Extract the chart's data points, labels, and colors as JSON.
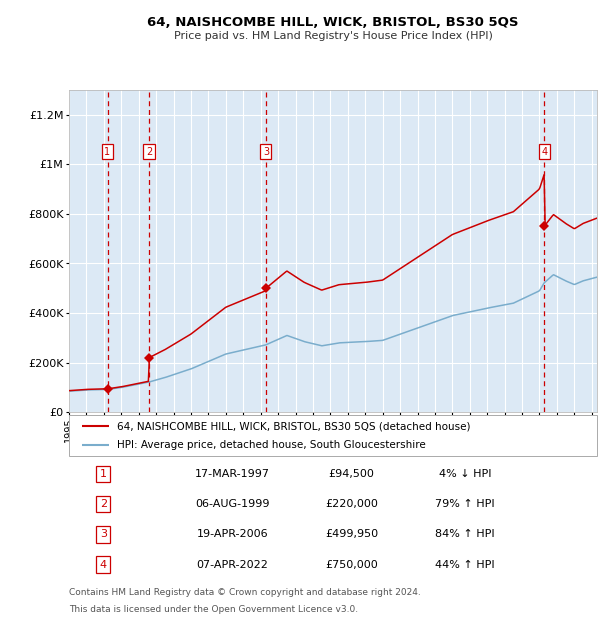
{
  "title": "64, NAISHCOMBE HILL, WICK, BRISTOL, BS30 5QS",
  "subtitle": "Price paid vs. HM Land Registry's House Price Index (HPI)",
  "legend_line1": "64, NAISHCOMBE HILL, WICK, BRISTOL, BS30 5QS (detached house)",
  "legend_line2": "HPI: Average price, detached house, South Gloucestershire",
  "footer1": "Contains HM Land Registry data © Crown copyright and database right 2024.",
  "footer2": "This data is licensed under the Open Government Licence v3.0.",
  "background_color": "#dce9f5",
  "plot_bg_color": "#dce9f5",
  "red_color": "#cc0000",
  "blue_color": "#7aadcc",
  "ylim": [
    0,
    1300000
  ],
  "yticks": [
    0,
    200000,
    400000,
    600000,
    800000,
    1000000,
    1200000
  ],
  "ytick_labels": [
    "£0",
    "£200K",
    "£400K",
    "£600K",
    "£800K",
    "£1M",
    "£1.2M"
  ],
  "sale_dates": [
    1997.21,
    1999.59,
    2006.3,
    2022.27
  ],
  "sale_prices": [
    94500,
    220000,
    499950,
    750000
  ],
  "sale_labels": [
    "1",
    "2",
    "3",
    "4"
  ],
  "vline_dates": [
    1997.21,
    1999.59,
    2006.3,
    2022.27
  ],
  "xmin": 1995,
  "xmax": 2025.3,
  "table_data": [
    [
      "1",
      "17-MAR-1997",
      "£94,500",
      "4% ↓ HPI"
    ],
    [
      "2",
      "06-AUG-1999",
      "£220,000",
      "79% ↑ HPI"
    ],
    [
      "3",
      "19-APR-2006",
      "£499,950",
      "84% ↑ HPI"
    ],
    [
      "4",
      "07-APR-2022",
      "£750,000",
      "44% ↑ HPI"
    ]
  ]
}
